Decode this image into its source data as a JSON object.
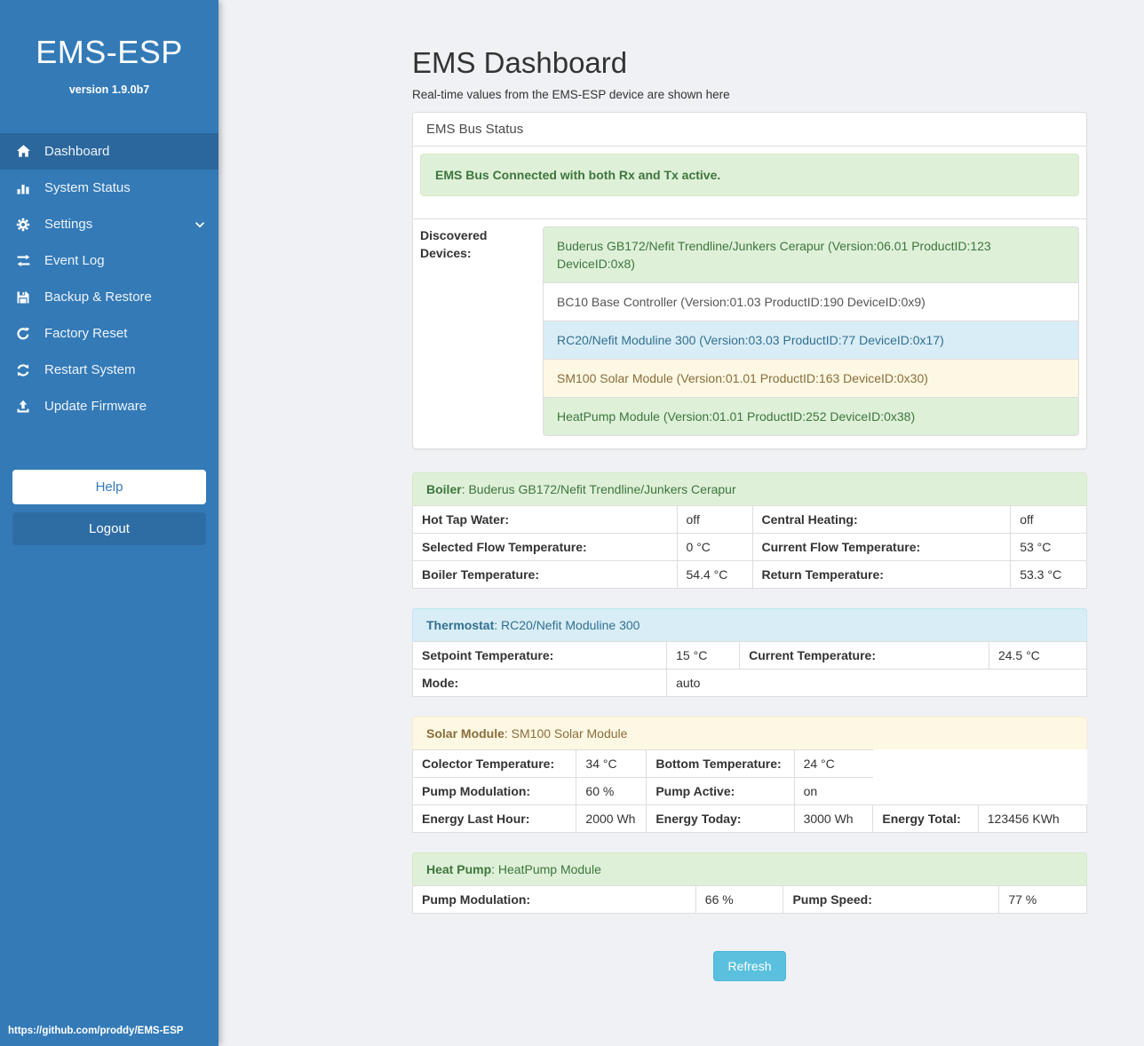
{
  "colors": {
    "sidebar": "#337ab7",
    "sidebar_active": "#2b679c",
    "logout_button": "#2e6da4",
    "page_bg": "#eff1f4",
    "border": "#dddddd",
    "success_bg": "#dff0d8",
    "success_text": "#3c763d",
    "info_bg": "#d9edf7",
    "info_text": "#31708f",
    "warning_bg": "#fcf8e3",
    "warning_text": "#8a6d3b",
    "refresh_button": "#5bc0de",
    "text": "#333333"
  },
  "sidebar": {
    "title": "EMS-ESP",
    "version": "version 1.9.0b7",
    "items": [
      {
        "label": "Dashboard",
        "icon": "home",
        "active": true
      },
      {
        "label": "System Status",
        "icon": "bar-chart",
        "active": false
      },
      {
        "label": "Settings",
        "icon": "gear",
        "active": false,
        "chevron": true
      },
      {
        "label": "Event Log",
        "icon": "exchange",
        "active": false
      },
      {
        "label": "Backup & Restore",
        "icon": "save",
        "active": false
      },
      {
        "label": "Factory Reset",
        "icon": "rotate-right",
        "active": false
      },
      {
        "label": "Restart System",
        "icon": "refresh",
        "active": false
      },
      {
        "label": "Update Firmware",
        "icon": "upload",
        "active": false
      }
    ],
    "help_label": "Help",
    "logout_label": "Logout",
    "footer_url": "https://github.com/proddy/EMS-ESP"
  },
  "main": {
    "title": "EMS Dashboard",
    "subtitle": "Real-time values from the EMS-ESP device are shown here",
    "bus_panel": {
      "heading": "EMS Bus Status",
      "alert": "EMS Bus Connected with both Rx and Tx active.",
      "devices_label": "Discovered Devices:",
      "devices": [
        {
          "text": "Buderus GB172/Nefit Trendline/Junkers Cerapur (Version:06.01 ProductID:123 DeviceID:0x8)",
          "variant": "success"
        },
        {
          "text": "BC10 Base Controller (Version:01.03 ProductID:190 DeviceID:0x9)",
          "variant": "default"
        },
        {
          "text": "RC20/Nefit Moduline 300 (Version:03.03 ProductID:77 DeviceID:0x17)",
          "variant": "info"
        },
        {
          "text": "SM100 Solar Module (Version:01.01 ProductID:163 DeviceID:0x30)",
          "variant": "warning"
        },
        {
          "text": "HeatPump Module (Version:01.01 ProductID:252 DeviceID:0x38)",
          "variant": "success"
        }
      ]
    },
    "sections": [
      {
        "key": "boiler",
        "variant": "success",
        "label": "Boiler",
        "name": "Buderus GB172/Nefit Trendline/Junkers Cerapur",
        "cols": [
          "39.2%",
          "11.2%",
          "38.3%",
          "11.3%"
        ],
        "rows": [
          [
            {
              "t": "Hot Tap Water:",
              "b": true
            },
            {
              "t": "off"
            },
            {
              "t": "Central Heating:",
              "b": true
            },
            {
              "t": "off"
            }
          ],
          [
            {
              "t": "Selected Flow Temperature:",
              "b": true
            },
            {
              "t": "0 °C"
            },
            {
              "t": "Current Flow Temperature:",
              "b": true
            },
            {
              "t": "53 °C"
            }
          ],
          [
            {
              "t": "Boiler Temperature:",
              "b": true
            },
            {
              "t": "54.4 °C"
            },
            {
              "t": "Return Temperature:",
              "b": true
            },
            {
              "t": "53.3 °C"
            }
          ]
        ]
      },
      {
        "key": "thermostat",
        "variant": "info",
        "label": "Thermostat",
        "name": "RC20/Nefit Moduline 300",
        "cols": [
          "37.7%",
          "10.8%",
          "37.0%",
          "14.5%"
        ],
        "rows": [
          [
            {
              "t": "Setpoint Temperature:",
              "b": true
            },
            {
              "t": "15 °C"
            },
            {
              "t": "Current Temperature:",
              "b": true
            },
            {
              "t": "24.5 °C"
            }
          ],
          [
            {
              "t": "Mode:",
              "b": true
            },
            {
              "t": "auto",
              "colspan": 3
            }
          ]
        ]
      },
      {
        "key": "solar-module",
        "variant": "warning",
        "label": "Solar Module",
        "name": "SM100 Solar Module",
        "cols": [
          "24.3%",
          "10.4%",
          "21.9%",
          "11.7%",
          "15.6%",
          "16.1%"
        ],
        "rows": [
          [
            {
              "t": "Colector Temperature:",
              "b": true
            },
            {
              "t": "34 °C"
            },
            {
              "t": "Bottom Temperature:",
              "b": true
            },
            {
              "t": "24 °C",
              "nbr": true
            },
            {
              "t": "",
              "colspan": 2,
              "nb": true
            }
          ],
          [
            {
              "t": "Pump Modulation:",
              "b": true
            },
            {
              "t": "60 %"
            },
            {
              "t": "Pump Active:",
              "b": true
            },
            {
              "t": "on",
              "nbr": true
            },
            {
              "t": "",
              "colspan": 2,
              "nb": true
            }
          ],
          [
            {
              "t": "Energy Last Hour:",
              "b": true
            },
            {
              "t": "2000 Wh"
            },
            {
              "t": "Energy Today:",
              "b": true
            },
            {
              "t": "3000 Wh"
            },
            {
              "t": "Energy Total:",
              "b": true
            },
            {
              "t": "123456 KWh"
            }
          ]
        ]
      },
      {
        "key": "heat-pump",
        "variant": "success",
        "label": "Heat Pump",
        "name": "HeatPump Module",
        "cols": [
          "42%",
          "13%",
          "32%",
          "13%"
        ],
        "rows": [
          [
            {
              "t": "Pump Modulation:",
              "b": true
            },
            {
              "t": "66 %"
            },
            {
              "t": "Pump Speed:",
              "b": true
            },
            {
              "t": "77 %"
            }
          ]
        ]
      }
    ],
    "refresh_label": "Refresh"
  }
}
